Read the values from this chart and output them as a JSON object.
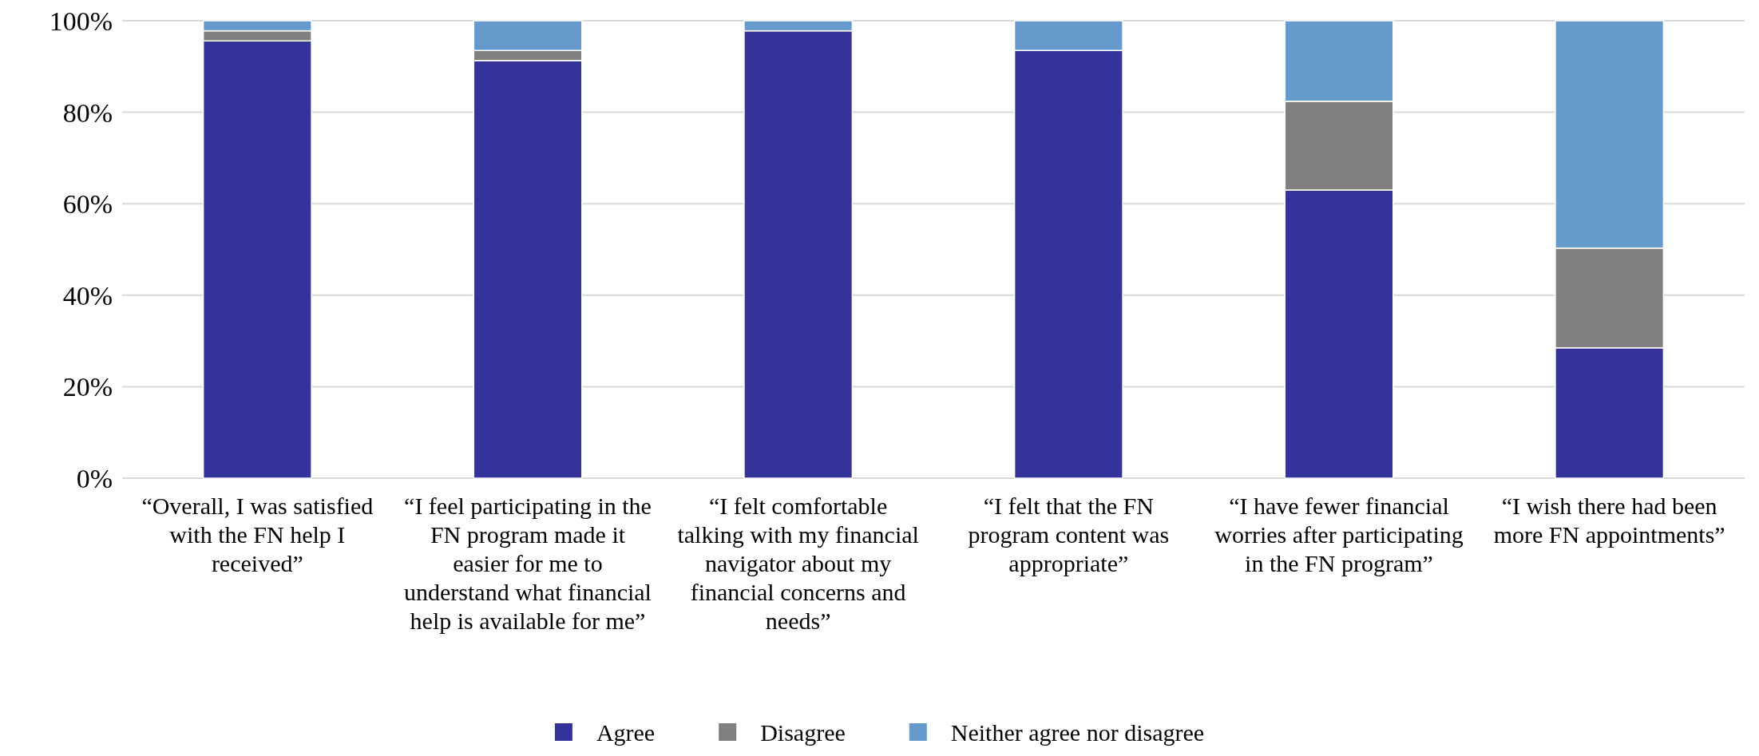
{
  "chart_data": {
    "type": "bar",
    "stacked": true,
    "categories": [
      "“Overall, I was satisfied with the FN help I received”",
      "“I feel participating in the FN program made it easier for me to understand what financial help is available for me”",
      "“I felt comfortable talking with my financial navigator about my financial concerns and needs”",
      "“I felt that the FN program content was appropriate”",
      "“I have fewer financial worries after participating in the FN program”",
      "“I wish there had been more FN appointments”"
    ],
    "series": [
      {
        "name": "Agree",
        "color": "#333399",
        "values": [
          95.6,
          91.3,
          97.8,
          93.5,
          63,
          28.5
        ]
      },
      {
        "name": "Disagree",
        "color": "#808080",
        "values": [
          2.2,
          2.2,
          0,
          0,
          19.4,
          21.8
        ]
      },
      {
        "name": "Neither agree nor disagree",
        "color": "#6699cc",
        "values": [
          2.2,
          6.5,
          2.2,
          6.5,
          17.6,
          49.7
        ]
      }
    ],
    "ylim": [
      0,
      100
    ],
    "yticks": [
      {
        "value": 0,
        "label": "0%"
      },
      {
        "value": 20,
        "label": "20%"
      },
      {
        "value": 40,
        "label": "40%"
      },
      {
        "value": 60,
        "label": "60%"
      },
      {
        "value": 80,
        "label": "80%"
      },
      {
        "value": 100,
        "label": "100%"
      }
    ],
    "grid": "y",
    "legend": "bottom"
  }
}
